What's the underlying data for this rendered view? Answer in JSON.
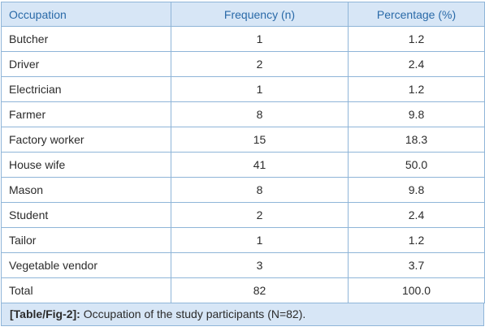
{
  "table": {
    "headers": [
      "Occupation",
      "Frequency (n)",
      "Percentage (%)"
    ],
    "rows": [
      [
        "Butcher",
        "1",
        "1.2"
      ],
      [
        "Driver",
        "2",
        "2.4"
      ],
      [
        "Electrician",
        "1",
        "1.2"
      ],
      [
        "Farmer",
        "8",
        "9.8"
      ],
      [
        "Factory worker",
        "15",
        "18.3"
      ],
      [
        "House wife",
        "41",
        "50.0"
      ],
      [
        "Mason",
        "8",
        "9.8"
      ],
      [
        "Student",
        "2",
        "2.4"
      ],
      [
        "Tailor",
        "1",
        "1.2"
      ],
      [
        "Vegetable vendor",
        "3",
        "3.7"
      ],
      [
        "Total",
        "82",
        "100.0"
      ]
    ]
  },
  "caption": {
    "tag": "[Table/Fig-2]:",
    "text": " Occupation of the study participants (N=82)."
  },
  "colors": {
    "header_bg": "#d7e6f6",
    "header_text": "#2a6aa8",
    "border": "#8fb5d8"
  }
}
